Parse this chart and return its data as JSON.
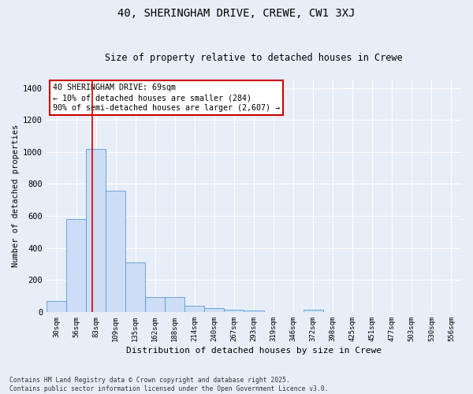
{
  "title": "40, SHERINGHAM DRIVE, CREWE, CW1 3XJ",
  "subtitle": "Size of property relative to detached houses in Crewe",
  "xlabel": "Distribution of detached houses by size in Crewe",
  "ylabel": "Number of detached properties",
  "categories": [
    "30sqm",
    "56sqm",
    "83sqm",
    "109sqm",
    "135sqm",
    "162sqm",
    "188sqm",
    "214sqm",
    "240sqm",
    "267sqm",
    "293sqm",
    "319sqm",
    "346sqm",
    "372sqm",
    "398sqm",
    "425sqm",
    "451sqm",
    "477sqm",
    "503sqm",
    "530sqm",
    "556sqm"
  ],
  "values": [
    70,
    580,
    1020,
    760,
    310,
    95,
    95,
    40,
    22,
    15,
    8,
    0,
    0,
    15,
    0,
    0,
    0,
    0,
    0,
    0,
    0
  ],
  "bar_color": "#ccddf5",
  "bar_edge_color": "#5b9bd5",
  "vline_x": 1.83,
  "vline_color": "#cc0000",
  "annotation_box_text": "40 SHERINGHAM DRIVE: 69sqm\n← 10% of detached houses are smaller (284)\n90% of semi-detached houses are larger (2,607) →",
  "annotation_box_color": "#cc0000",
  "ylim": [
    0,
    1450
  ],
  "yticks": [
    0,
    200,
    400,
    600,
    800,
    1000,
    1200,
    1400
  ],
  "background_color": "#e8eef8",
  "grid_color": "#ffffff",
  "footer_line1": "Contains HM Land Registry data © Crown copyright and database right 2025.",
  "footer_line2": "Contains public sector information licensed under the Open Government Licence v3.0."
}
